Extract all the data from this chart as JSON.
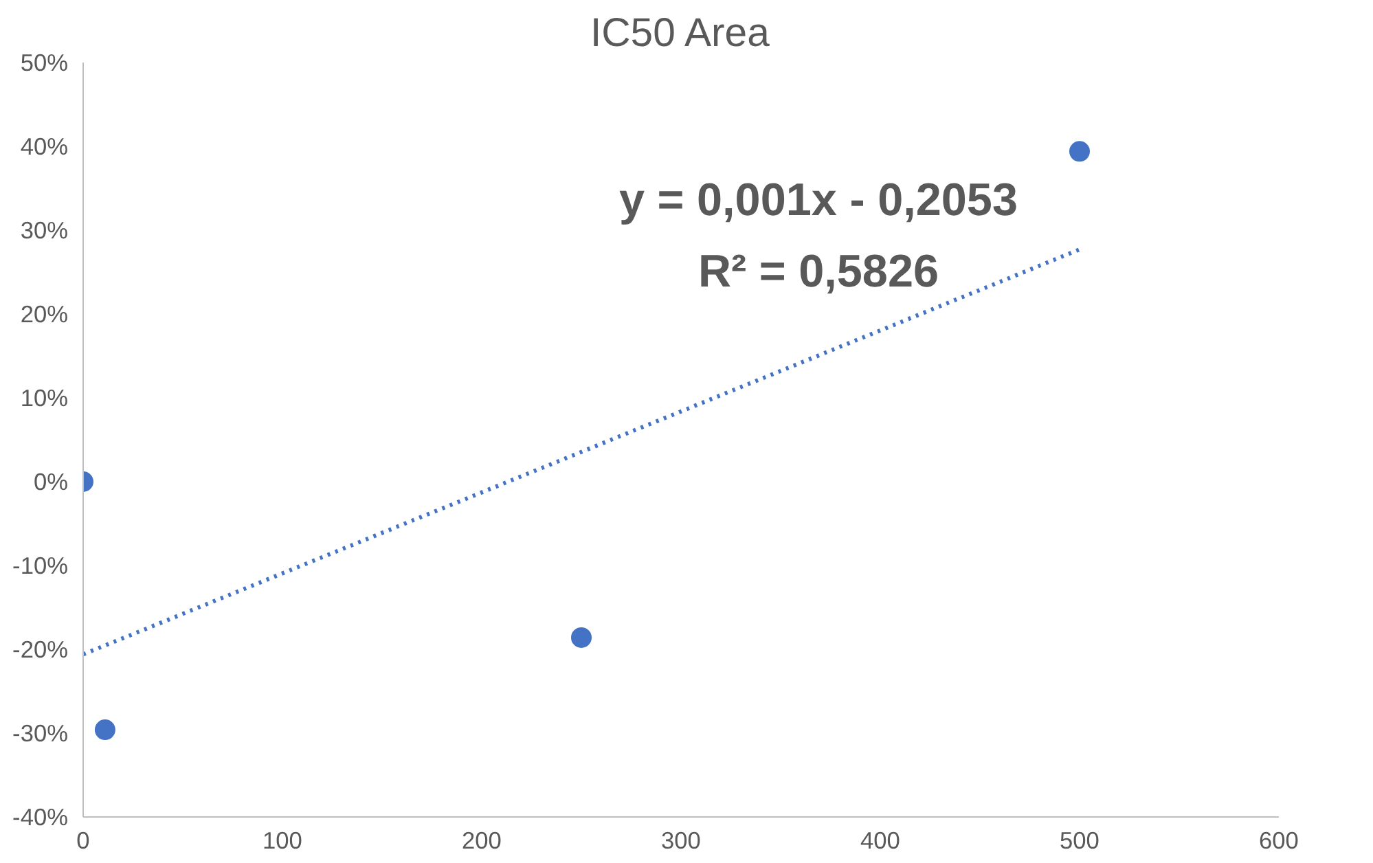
{
  "chart_data": {
    "type": "scatter",
    "title": "IC50 Area",
    "grid": false,
    "xlim": [
      0,
      600
    ],
    "xticks": [
      0,
      100,
      200,
      300,
      400,
      500,
      600
    ],
    "ylim": [
      -40,
      50
    ],
    "yticks": [
      {
        "value": -40,
        "label": "-40%"
      },
      {
        "value": -30,
        "label": "-30%"
      },
      {
        "value": -20,
        "label": "-20%"
      },
      {
        "value": -10,
        "label": "-10%"
      },
      {
        "value": 0,
        "label": "0%"
      },
      {
        "value": 10,
        "label": "10%"
      },
      {
        "value": 20,
        "label": "20%"
      },
      {
        "value": 30,
        "label": "30%"
      },
      {
        "value": 40,
        "label": "40%"
      },
      {
        "value": 50,
        "label": "50%"
      }
    ],
    "series": [
      {
        "marker": "circle",
        "color": "#4472c4",
        "x": [
          0,
          11,
          250,
          500
        ],
        "values": [
          0,
          -29.6,
          -18.6,
          39.4
        ]
      },
      {
        "type": "line",
        "marker": "none",
        "color": "#4472c4",
        "line_style": "dotted",
        "x": [
          0,
          500
        ],
        "values": [
          -20.6,
          27.7
        ]
      }
    ],
    "annotations": [
      "y = 0,001x - 0,2053",
      "R² = 0,5826"
    ]
  }
}
